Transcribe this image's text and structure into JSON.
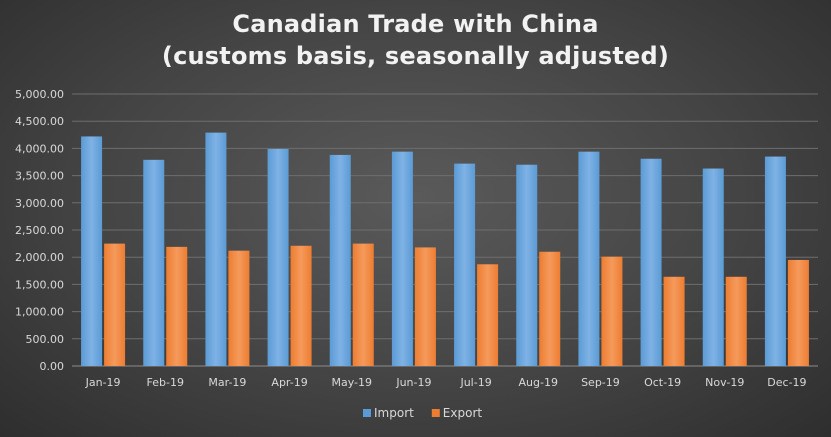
{
  "chart_data": {
    "type": "bar",
    "title_line1": "Canadian Trade with China",
    "title_line2": "(customs basis, seasonally adjusted)",
    "xlabel": "",
    "ylabel": "",
    "categories": [
      "Jan-19",
      "Feb-19",
      "Mar-19",
      "Apr-19",
      "May-19",
      "Jun-19",
      "Jul-19",
      "Aug-19",
      "Sep-19",
      "Oct-19",
      "Nov-19",
      "Dec-19"
    ],
    "series": [
      {
        "name": "Import",
        "color": "#5b9bd5",
        "values": [
          4220,
          3790,
          4290,
          3990,
          3880,
          3940,
          3720,
          3700,
          3940,
          3810,
          3630,
          3850
        ]
      },
      {
        "name": "Export",
        "color": "#ed7d31",
        "values": [
          2250,
          2190,
          2120,
          2210,
          2250,
          2180,
          1870,
          2100,
          2010,
          1640,
          1640,
          1950
        ]
      }
    ],
    "ylim": [
      0,
      5000
    ],
    "yticks": [
      "0.00",
      "500.00",
      "1,000.00",
      "1,500.00",
      "2,000.00",
      "2,500.00",
      "3,000.00",
      "3,500.00",
      "4,000.00",
      "4,500.00",
      "5,000.00"
    ],
    "grid": true,
    "legend_position": "bottom"
  }
}
